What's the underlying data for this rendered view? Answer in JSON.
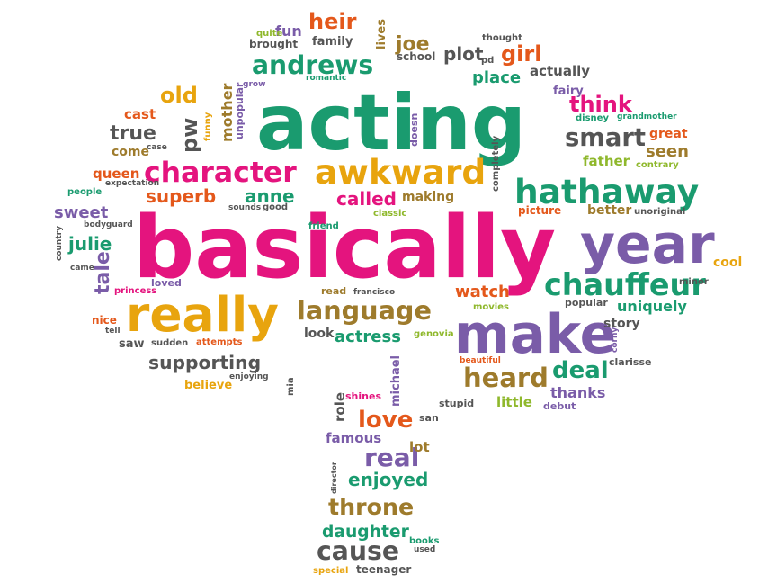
{
  "colors": {
    "pink": "#e4147e",
    "green": "#1a9b6f",
    "orange": "#e8a40e",
    "purple": "#7a5ca8",
    "gray": "#555555",
    "red": "#e4581b",
    "brown": "#9e7b2c",
    "lime": "#8fb82c",
    "lightgreen": "#5aab3d"
  },
  "words": [
    {
      "text": "basically",
      "color": "pink"
    },
    {
      "text": "acting",
      "color": "green"
    },
    {
      "text": "make",
      "color": "purple"
    },
    {
      "text": "really",
      "color": "orange"
    },
    {
      "text": "year",
      "color": "purple"
    },
    {
      "text": "awkward",
      "color": "orange"
    },
    {
      "text": "hathaway",
      "color": "green"
    },
    {
      "text": "character",
      "color": "pink"
    },
    {
      "text": "language",
      "color": "brown"
    },
    {
      "text": "chauffeur",
      "color": "green"
    },
    {
      "text": "andrews",
      "color": "green"
    },
    {
      "text": "supporting",
      "color": "gray"
    },
    {
      "text": "smart",
      "color": "gray"
    },
    {
      "text": "heard",
      "color": "brown"
    },
    {
      "text": "throne",
      "color": "brown"
    },
    {
      "text": "cause",
      "color": "gray"
    },
    {
      "text": "daughter",
      "color": "green"
    },
    {
      "text": "heir",
      "color": "red"
    },
    {
      "text": "girl",
      "color": "red"
    },
    {
      "text": "old",
      "color": "orange"
    },
    {
      "text": "true",
      "color": "gray"
    },
    {
      "text": "superb",
      "color": "red"
    },
    {
      "text": "anne",
      "color": "green"
    },
    {
      "text": "called",
      "color": "pink"
    },
    {
      "text": "julie",
      "color": "green"
    },
    {
      "text": "sweet",
      "color": "purple"
    },
    {
      "text": "tale",
      "color": "purple"
    },
    {
      "text": "think",
      "color": "pink"
    },
    {
      "text": "seen",
      "color": "brown"
    },
    {
      "text": "deal",
      "color": "green"
    },
    {
      "text": "love",
      "color": "red"
    },
    {
      "text": "real",
      "color": "purple"
    },
    {
      "text": "enjoyed",
      "color": "green"
    },
    {
      "text": "watch",
      "color": "red"
    },
    {
      "text": "actress",
      "color": "green"
    },
    {
      "text": "place",
      "color": "green"
    },
    {
      "text": "plot",
      "color": "gray"
    },
    {
      "text": "pd",
      "color": "gray"
    },
    {
      "text": "joe",
      "color": "brown"
    },
    {
      "text": "mother",
      "color": "brown"
    },
    {
      "text": "pw",
      "color": "gray"
    },
    {
      "text": "cool",
      "color": "orange"
    },
    {
      "text": "uniquely",
      "color": "green"
    },
    {
      "text": "story",
      "color": "gray"
    },
    {
      "text": "father",
      "color": "lime"
    },
    {
      "text": "better",
      "color": "brown"
    },
    {
      "text": "picture",
      "color": "red"
    },
    {
      "text": "thanks",
      "color": "purple"
    },
    {
      "text": "little",
      "color": "lime"
    },
    {
      "text": "great",
      "color": "red"
    },
    {
      "text": "actually",
      "color": "gray"
    },
    {
      "text": "school",
      "color": "gray"
    },
    {
      "text": "family",
      "color": "gray"
    },
    {
      "text": "fun",
      "color": "purple"
    },
    {
      "text": "quite",
      "color": "lime"
    },
    {
      "text": "brought",
      "color": "gray"
    },
    {
      "text": "lives",
      "color": "brown"
    },
    {
      "text": "thought",
      "color": "gray"
    },
    {
      "text": "romantic",
      "color": "green"
    },
    {
      "text": "grow",
      "color": "purple"
    },
    {
      "text": "unpopular",
      "color": "purple"
    },
    {
      "text": "funny",
      "color": "orange"
    },
    {
      "text": "cast",
      "color": "red"
    },
    {
      "text": "come",
      "color": "brown"
    },
    {
      "text": "case",
      "color": "gray"
    },
    {
      "text": "queen",
      "color": "red"
    },
    {
      "text": "expectation",
      "color": "gray"
    },
    {
      "text": "people",
      "color": "green"
    },
    {
      "text": "bodyguard",
      "color": "gray"
    },
    {
      "text": "sounds",
      "color": "gray"
    },
    {
      "text": "good",
      "color": "gray"
    },
    {
      "text": "making",
      "color": "brown"
    },
    {
      "text": "classic",
      "color": "lime"
    },
    {
      "text": "friend",
      "color": "green"
    },
    {
      "text": "country",
      "color": "gray"
    },
    {
      "text": "came",
      "color": "gray"
    },
    {
      "text": "loved",
      "color": "purple"
    },
    {
      "text": "princess",
      "color": "pink"
    },
    {
      "text": "nice",
      "color": "red"
    },
    {
      "text": "tell",
      "color": "gray"
    },
    {
      "text": "saw",
      "color": "gray"
    },
    {
      "text": "sudden",
      "color": "gray"
    },
    {
      "text": "attempts",
      "color": "red"
    },
    {
      "text": "enjoying",
      "color": "gray"
    },
    {
      "text": "believe",
      "color": "orange"
    },
    {
      "text": "mia",
      "color": "gray"
    },
    {
      "text": "read",
      "color": "brown"
    },
    {
      "text": "francisco",
      "color": "gray"
    },
    {
      "text": "look",
      "color": "gray"
    },
    {
      "text": "genovia",
      "color": "lime"
    },
    {
      "text": "movies",
      "color": "lime"
    },
    {
      "text": "popular",
      "color": "gray"
    },
    {
      "text": "minor",
      "color": "gray"
    },
    {
      "text": "unoriginal",
      "color": "gray"
    },
    {
      "text": "fairy",
      "color": "purple"
    },
    {
      "text": "disney",
      "color": "green"
    },
    {
      "text": "grandmother",
      "color": "green"
    },
    {
      "text": "contrary",
      "color": "lime"
    },
    {
      "text": "doesn",
      "color": "purple"
    },
    {
      "text": "completely",
      "color": "gray"
    },
    {
      "text": "beautiful",
      "color": "red"
    },
    {
      "text": "corny",
      "color": "purple"
    },
    {
      "text": "clarisse",
      "color": "gray"
    },
    {
      "text": "debut",
      "color": "purple"
    },
    {
      "text": "stupid",
      "color": "gray"
    },
    {
      "text": "san",
      "color": "gray"
    },
    {
      "text": "shines",
      "color": "pink"
    },
    {
      "text": "michael",
      "color": "purple"
    },
    {
      "text": "role",
      "color": "gray"
    },
    {
      "text": "famous",
      "color": "purple"
    },
    {
      "text": "lot",
      "color": "brown"
    },
    {
      "text": "director",
      "color": "gray"
    },
    {
      "text": "books",
      "color": "green"
    },
    {
      "text": "used",
      "color": "gray"
    },
    {
      "text": "special",
      "color": "orange"
    },
    {
      "text": "teenager",
      "color": "gray"
    }
  ]
}
